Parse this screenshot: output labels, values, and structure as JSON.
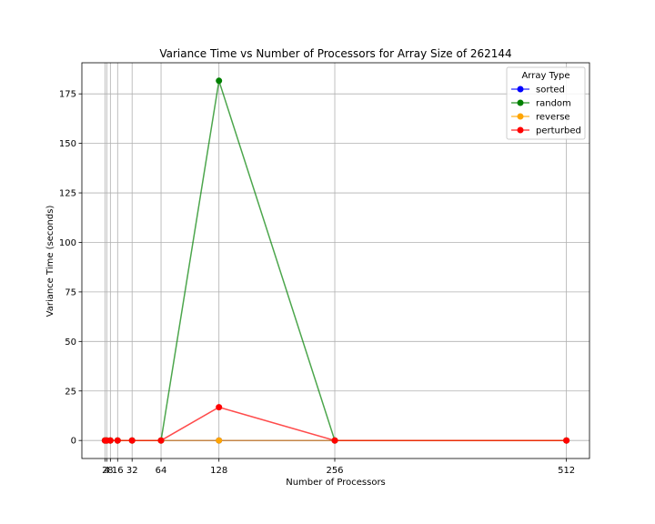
{
  "chart_data": {
    "type": "line",
    "title": "Variance Time vs Number of Processors for Array Size of 262144",
    "xlabel": "Number of Processors",
    "ylabel": "Variance Time (seconds)",
    "x": [
      2,
      4,
      8,
      16,
      32,
      64,
      128,
      256,
      512
    ],
    "xticks": [
      "2",
      "4",
      "8",
      "16",
      "32",
      "64",
      "128",
      "256",
      "512"
    ],
    "yticks": [
      0,
      25,
      50,
      75,
      100,
      125,
      150,
      175
    ],
    "xlim": [
      -23.5,
      537.5
    ],
    "ylim": [
      -9.1,
      190.7
    ],
    "grid": true,
    "legend": {
      "title": "Array Type",
      "placement": "top-right"
    },
    "series": [
      {
        "name": "sorted",
        "color": "#0000ff",
        "values": [
          0,
          0,
          0,
          0,
          0,
          0,
          0,
          0,
          0
        ]
      },
      {
        "name": "random",
        "color": "#008000",
        "values": [
          0,
          0,
          0,
          0,
          0,
          0,
          181.6,
          0,
          0
        ]
      },
      {
        "name": "reverse",
        "color": "#ffa500",
        "values": [
          0,
          0,
          0,
          0,
          0,
          0,
          0,
          0,
          0
        ]
      },
      {
        "name": "perturbed",
        "color": "#ff0000",
        "values": [
          0,
          0,
          0,
          0,
          0,
          0,
          16.8,
          0,
          0
        ]
      }
    ]
  }
}
